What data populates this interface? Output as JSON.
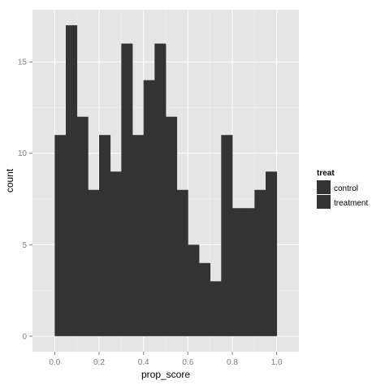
{
  "chart_data": {
    "type": "histogram",
    "xlabel": "prop_score",
    "ylabel": "count",
    "xlim": [
      -0.1,
      1.1
    ],
    "ylim": [
      -0.85,
      17.85
    ],
    "x_ticks": [
      "0.0",
      "0.2",
      "0.4",
      "0.6",
      "0.8",
      "1.0"
    ],
    "x_tick_values": [
      0.0,
      0.2,
      0.4,
      0.6,
      0.8,
      1.0
    ],
    "y_ticks": [
      "0",
      "5",
      "10",
      "15"
    ],
    "y_tick_values": [
      0,
      5,
      10,
      15
    ],
    "bin_width": 0.05,
    "bin_starts": [
      0.0,
      0.05,
      0.1,
      0.15,
      0.2,
      0.25,
      0.3,
      0.35,
      0.4,
      0.45,
      0.5,
      0.55,
      0.6,
      0.65,
      0.7,
      0.75,
      0.8,
      0.85,
      0.9,
      0.95
    ],
    "values": [
      11,
      17,
      12,
      8,
      11,
      9,
      16,
      11,
      14,
      16,
      12,
      8,
      5,
      4,
      3,
      11,
      7,
      7,
      8,
      9
    ],
    "grid": true,
    "legend": {
      "title": "treat",
      "entries": [
        "control",
        "treatment"
      ],
      "position": "right"
    },
    "colors": {
      "panel": "#e5e5e5",
      "grid_major": "#ffffff",
      "grid_minor": "#f2f2f2",
      "bar_fill": "#333333",
      "tick_text": "#7f7f7f"
    }
  }
}
